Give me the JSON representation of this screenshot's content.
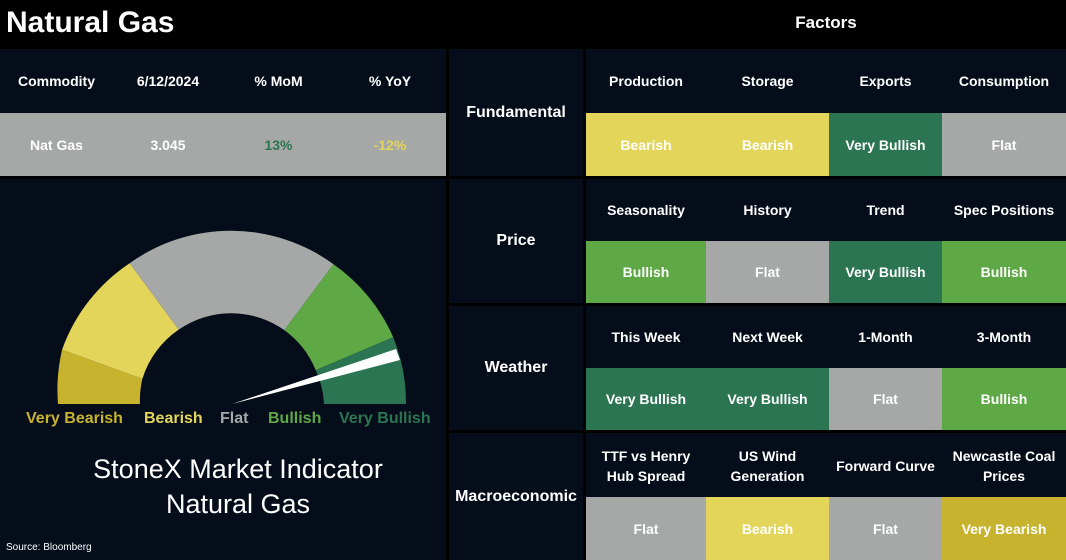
{
  "title": "Natural Gas",
  "factors_title": "Factors",
  "commodity_table": {
    "headers": [
      "Commodity",
      "6/12/2024",
      "% MoM",
      "% YoY"
    ],
    "row": [
      "Nat Gas",
      "3.045",
      "13%",
      "-12%"
    ]
  },
  "gauge": {
    "labels": [
      "Very Bearish",
      "Bearish",
      "Flat",
      "Bullish",
      "Very Bullish"
    ],
    "indicator_title_line1": "StoneX Market Indicator",
    "indicator_title_line2": "Natural Gas"
  },
  "source": "Source: Bloomberg",
  "categories": [
    {
      "name": "Fundamental",
      "factors": [
        "Production",
        "Storage",
        "Exports",
        "Consumption"
      ],
      "statuses": [
        "Bearish",
        "Bearish",
        "Very Bullish",
        "Flat"
      ]
    },
    {
      "name": "Price",
      "factors": [
        "Seasonality",
        "History",
        "Trend",
        "Spec Positions"
      ],
      "statuses": [
        "Bullish",
        "Flat",
        "Very Bullish",
        "Bullish"
      ]
    },
    {
      "name": "Weather",
      "factors": [
        "This Week",
        "Next Week",
        "1-Month",
        "3-Month"
      ],
      "statuses": [
        "Very Bullish",
        "Very Bullish",
        "Flat",
        "Bullish"
      ]
    },
    {
      "name": "Macroeconomic",
      "factors": [
        "TTF vs Henry Hub Spread",
        "US Wind Generation",
        "Forward Curve",
        "Newcastle Coal Prices"
      ],
      "statuses": [
        "Flat",
        "Bearish",
        "Flat",
        "Very Bearish"
      ]
    }
  ],
  "colors": {
    "very_bearish": "#c8b32e",
    "bearish": "#e3d55a",
    "flat": "#a5a8a7",
    "bullish": "#5ea845",
    "very_bullish": "#2b7552",
    "mom_positive": "#2b7552",
    "yoy_negative": "#e3d55a",
    "background": "#060d1a"
  }
}
